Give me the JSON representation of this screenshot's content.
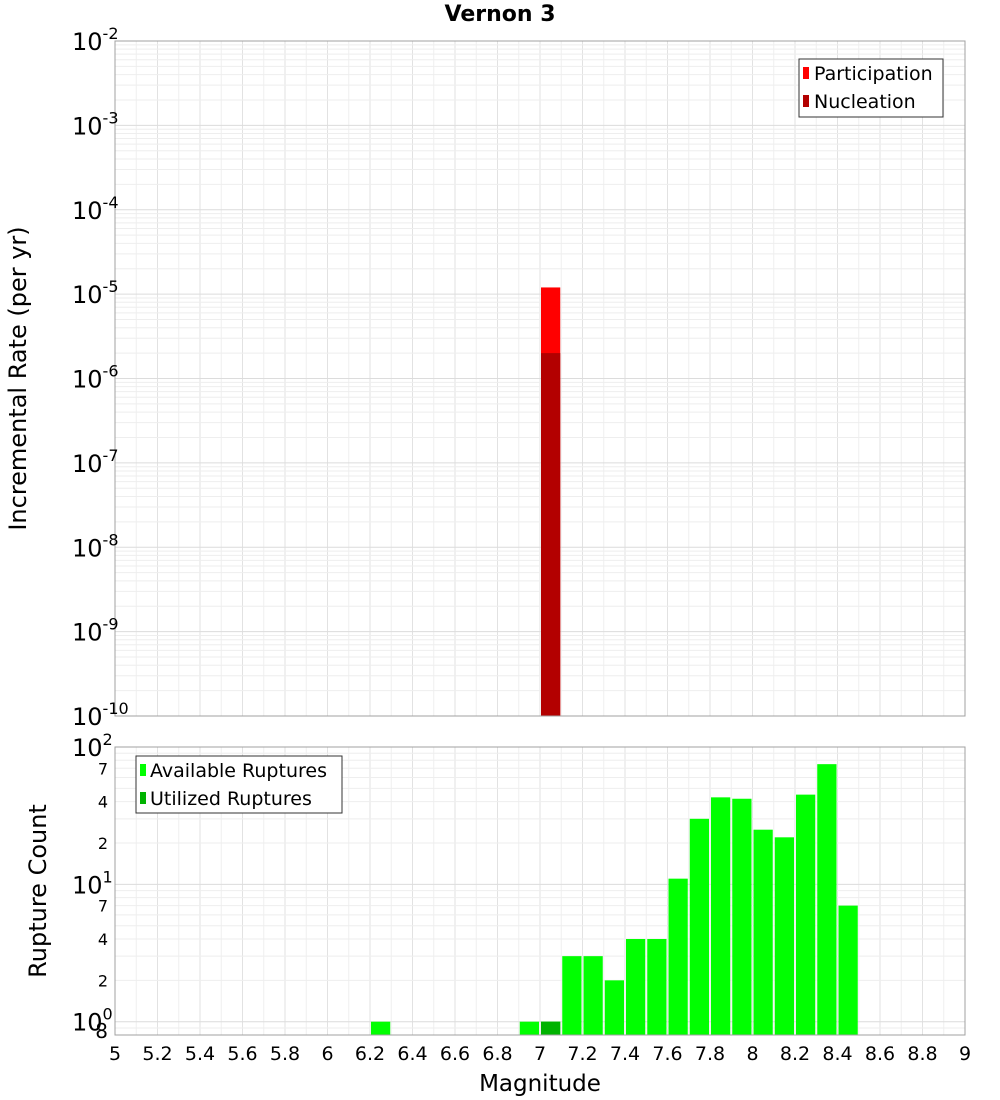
{
  "chart_data": [
    {
      "type": "bar",
      "title": "Vernon 3",
      "xlabel": "",
      "ylabel": "Incremental Rate (per yr)",
      "y_scale": "log",
      "ylim": [
        1e-10,
        0.01
      ],
      "xlim": [
        5,
        9
      ],
      "grid": true,
      "legend_position": "top-right",
      "y_ticks": [
        {
          "base": "10",
          "exp": "-10"
        },
        {
          "base": "10",
          "exp": "-9"
        },
        {
          "base": "10",
          "exp": "-8"
        },
        {
          "base": "10",
          "exp": "-7"
        },
        {
          "base": "10",
          "exp": "-6"
        },
        {
          "base": "10",
          "exp": "-5"
        },
        {
          "base": "10",
          "exp": "-4"
        },
        {
          "base": "10",
          "exp": "-3"
        },
        {
          "base": "10",
          "exp": "-2"
        }
      ],
      "series": [
        {
          "name": "Participation",
          "color": "#ff0000",
          "points": [
            {
              "x": 7.05,
              "y": 1.2e-05
            }
          ]
        },
        {
          "name": "Nucleation",
          "color": "#b30000",
          "points": [
            {
              "x": 7.05,
              "y": 2e-06
            }
          ]
        }
      ]
    },
    {
      "type": "bar",
      "title": "",
      "xlabel": "Magnitude",
      "ylabel": "Rupture Count",
      "y_scale": "log",
      "ylim": [
        0.8,
        100
      ],
      "xlim": [
        5,
        9
      ],
      "grid": true,
      "legend_position": "top-left",
      "x_ticks": [
        "5",
        "5.2",
        "5.4",
        "5.6",
        "5.8",
        "6",
        "6.2",
        "6.4",
        "6.6",
        "6.8",
        "7",
        "7.2",
        "7.4",
        "7.6",
        "7.8",
        "8",
        "8.2",
        "8.4",
        "8.6",
        "8.8",
        "9"
      ],
      "y_ticks": [
        {
          "value": 1,
          "base": "10",
          "exp": "0"
        },
        {
          "value": 10,
          "base": "10",
          "exp": "1"
        },
        {
          "value": 100,
          "base": "10",
          "exp": "2"
        }
      ],
      "y_minor_labels": [
        {
          "value": 0.8,
          "label": "8"
        },
        {
          "value": 2,
          "label": "2"
        },
        {
          "value": 4,
          "label": "4"
        },
        {
          "value": 7,
          "label": "7"
        },
        {
          "value": 20,
          "label": "2"
        },
        {
          "value": 40,
          "label": "4"
        },
        {
          "value": 70,
          "label": "7"
        }
      ],
      "series": [
        {
          "name": "Available Ruptures",
          "color": "#00ff00",
          "points": [
            {
              "x": 6.25,
              "y": 1
            },
            {
              "x": 6.95,
              "y": 1
            },
            {
              "x": 7.05,
              "y": 1
            },
            {
              "x": 7.15,
              "y": 3
            },
            {
              "x": 7.25,
              "y": 3
            },
            {
              "x": 7.35,
              "y": 2
            },
            {
              "x": 7.45,
              "y": 4
            },
            {
              "x": 7.55,
              "y": 4
            },
            {
              "x": 7.65,
              "y": 11
            },
            {
              "x": 7.75,
              "y": 30
            },
            {
              "x": 7.85,
              "y": 43
            },
            {
              "x": 7.95,
              "y": 42
            },
            {
              "x": 8.05,
              "y": 25
            },
            {
              "x": 8.15,
              "y": 22
            },
            {
              "x": 8.25,
              "y": 45
            },
            {
              "x": 8.35,
              "y": 75
            },
            {
              "x": 8.45,
              "y": 7
            }
          ]
        },
        {
          "name": "Utilized Ruptures",
          "color": "#00b300",
          "points": [
            {
              "x": 7.05,
              "y": 1
            }
          ]
        }
      ]
    }
  ]
}
